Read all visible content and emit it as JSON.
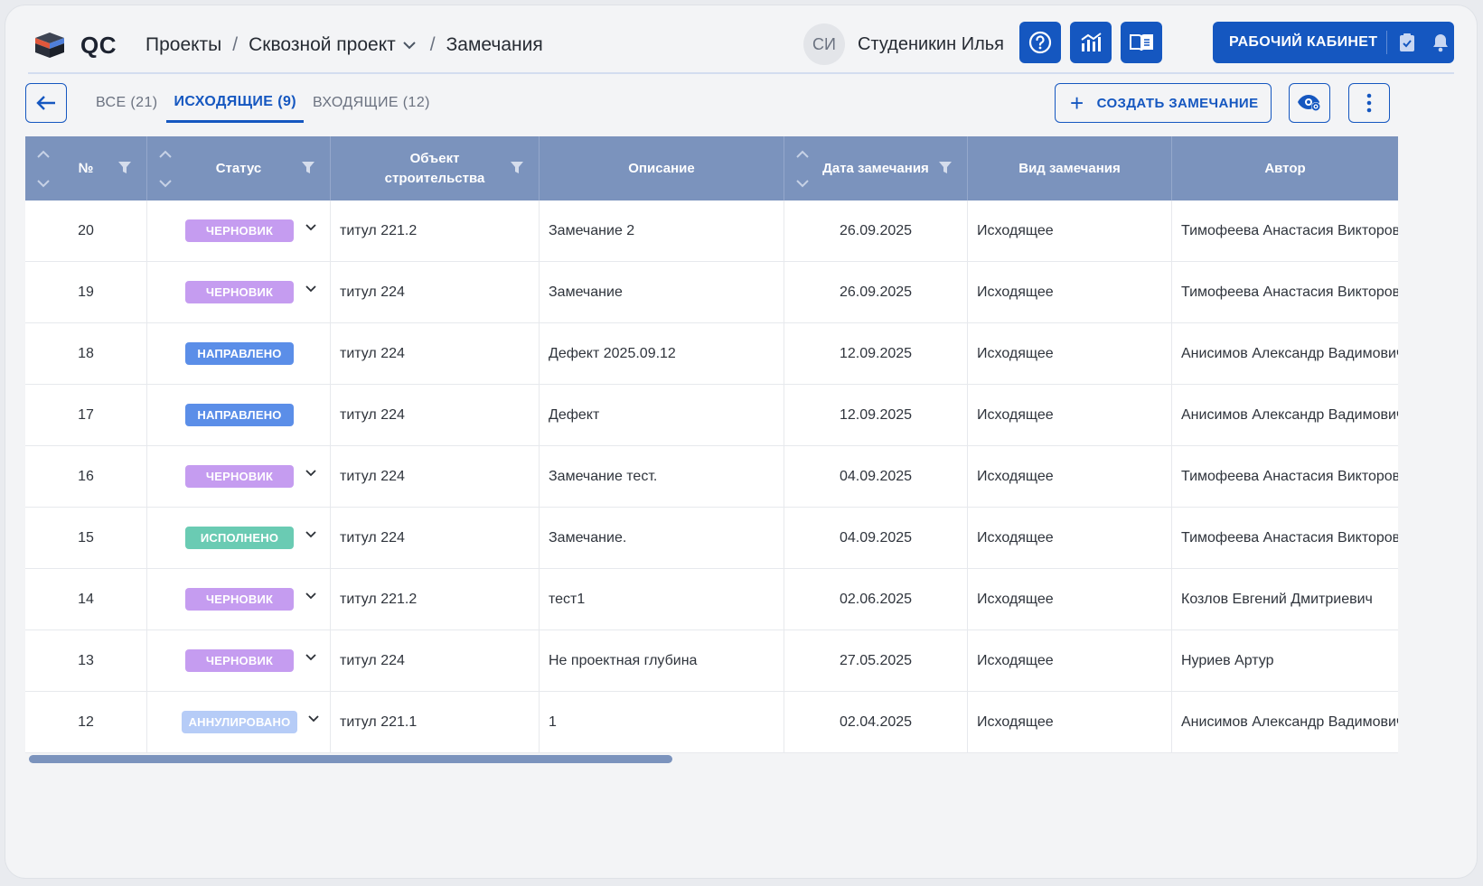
{
  "header": {
    "brand": "QC",
    "breadcrumbs": {
      "projects": "Проекты",
      "project": "Сквозной проект",
      "current": "Замечания",
      "separator": "/"
    },
    "user": {
      "initials": "СИ",
      "name": "Студеникин Илья"
    },
    "cabinet_label": "РАБОЧИЙ КАБИНЕТ",
    "icons": [
      "help-icon",
      "analytics-icon",
      "book-icon",
      "checklist-icon",
      "bell-icon"
    ]
  },
  "toolbar": {
    "tabs": [
      {
        "label": "ВСЕ (21)",
        "active": false
      },
      {
        "label": "ИСХОДЯЩИЕ (9)",
        "active": true
      },
      {
        "label": "ВХОДЯЩИЕ (12)",
        "active": false
      }
    ],
    "create_label": "СОЗДАТЬ ЗАМЕЧАНИЕ"
  },
  "colors": {
    "primary": "#1557c0",
    "header_bg": "#7b93bd",
    "status": {
      "draft": "#c59cf0",
      "sent": "#5b8ee8",
      "done": "#6acbb3",
      "cancelled": "#b6ccf7"
    }
  },
  "table": {
    "columns": [
      {
        "label": "№",
        "sortable": true,
        "filter": true
      },
      {
        "label": "Статус",
        "sortable": true,
        "filter": true
      },
      {
        "label": "Объект строительства",
        "sortable": false,
        "filter": true
      },
      {
        "label": "Описание",
        "sortable": false,
        "filter": false
      },
      {
        "label": "Дата замечания",
        "sortable": true,
        "filter": true
      },
      {
        "label": "Вид замечания",
        "sortable": false,
        "filter": false
      },
      {
        "label": "Автор",
        "sortable": false,
        "filter": false
      }
    ],
    "rows": [
      {
        "no": "20",
        "status": "ЧЕРНОВИК",
        "status_kind": "draft",
        "object": "титул 221.2",
        "description": "Замечание 2",
        "date": "26.09.2025",
        "kind": "Исходящее",
        "author": "Тимофеева Анастасия Викторовна"
      },
      {
        "no": "19",
        "status": "ЧЕРНОВИК",
        "status_kind": "draft",
        "object": "титул 224",
        "description": "Замечание",
        "date": "26.09.2025",
        "kind": "Исходящее",
        "author": "Тимофеева Анастасия Викторовна"
      },
      {
        "no": "18",
        "status": "НАПРАВЛЕНО",
        "status_kind": "sent",
        "object": "титул 224",
        "description": "Дефект 2025.09.12",
        "date": "12.09.2025",
        "kind": "Исходящее",
        "author": "Анисимов Александр Вадимович"
      },
      {
        "no": "17",
        "status": "НАПРАВЛЕНО",
        "status_kind": "sent",
        "object": "титул 224",
        "description": "Дефект",
        "date": "12.09.2025",
        "kind": "Исходящее",
        "author": "Анисимов Александр Вадимович"
      },
      {
        "no": "16",
        "status": "ЧЕРНОВИК",
        "status_kind": "draft",
        "object": "титул 224",
        "description": "Замечание тест.",
        "date": "04.09.2025",
        "kind": "Исходящее",
        "author": "Тимофеева Анастасия Викторовна"
      },
      {
        "no": "15",
        "status": "ИСПОЛНЕНО",
        "status_kind": "done",
        "object": "титул 224",
        "description": "Замечание.",
        "date": "04.09.2025",
        "kind": "Исходящее",
        "author": "Тимофеева Анастасия Викторовна"
      },
      {
        "no": "14",
        "status": "ЧЕРНОВИК",
        "status_kind": "draft",
        "object": "титул 221.2",
        "description": "тест1",
        "date": "02.06.2025",
        "kind": "Исходящее",
        "author": "Козлов Евгений Дмитриевич"
      },
      {
        "no": "13",
        "status": "ЧЕРНОВИК",
        "status_kind": "draft",
        "object": "титул 224",
        "description": "Не проектная глубина",
        "date": "27.05.2025",
        "kind": "Исходящее",
        "author": "Нуриев Артур"
      },
      {
        "no": "12",
        "status": "АННУЛИРОВАНО",
        "status_kind": "cancelled",
        "object": "титул 221.1",
        "description": "1",
        "date": "02.04.2025",
        "kind": "Исходящее",
        "author": "Анисимов Александр Вадимович"
      }
    ]
  }
}
